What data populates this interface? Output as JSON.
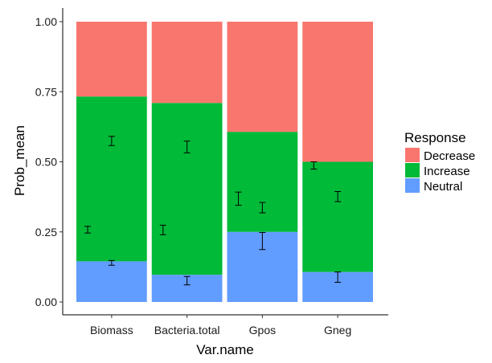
{
  "chart_data": {
    "type": "bar",
    "stacked": true,
    "xlabel": "Var.name",
    "ylabel": "Prob_mean",
    "ylim": [
      0,
      1
    ],
    "yticks": [
      "0.00",
      "0.25",
      "0.50",
      "0.75",
      "1.00"
    ],
    "ytick_values": [
      0,
      0.25,
      0.5,
      0.75,
      1.0
    ],
    "categories": [
      "Biomass",
      "Bacteria.total",
      "Gpos",
      "Gneg"
    ],
    "series": [
      {
        "name": "Neutral",
        "values": [
          0.145,
          0.097,
          0.25,
          0.107
        ],
        "color": "#619CFF"
      },
      {
        "name": "Increase",
        "values": [
          0.588,
          0.613,
          0.357,
          0.393
        ],
        "color": "#00BA38"
      },
      {
        "name": "Decrease",
        "values": [
          0.267,
          0.29,
          0.393,
          0.5
        ],
        "color": "#F8766D"
      }
    ],
    "error_bars": [
      {
        "category": "Biomass",
        "series": "Increase",
        "lower": 0.246,
        "upper": 0.27,
        "position": "left"
      },
      {
        "category": "Biomass",
        "series": "Increase",
        "lower": 0.558,
        "upper": 0.591,
        "position": "right"
      },
      {
        "category": "Biomass",
        "series": "Neutral",
        "lower": 0.131,
        "upper": 0.148,
        "position": "right"
      },
      {
        "category": "Bacteria.total",
        "series": "Increase",
        "lower": 0.24,
        "upper": 0.274,
        "position": "left"
      },
      {
        "category": "Bacteria.total",
        "series": "Increase",
        "lower": 0.532,
        "upper": 0.574,
        "position": "right"
      },
      {
        "category": "Bacteria.total",
        "series": "Neutral",
        "lower": 0.061,
        "upper": 0.091,
        "position": "right"
      },
      {
        "category": "Gpos",
        "series": "Increase",
        "lower": 0.345,
        "upper": 0.392,
        "position": "left"
      },
      {
        "category": "Gpos",
        "series": "Increase",
        "lower": 0.318,
        "upper": 0.355,
        "position": "right"
      },
      {
        "category": "Gpos",
        "series": "Neutral",
        "lower": 0.187,
        "upper": 0.248,
        "position": "right"
      },
      {
        "category": "Gneg",
        "series": "Increase",
        "lower": 0.474,
        "upper": 0.5,
        "position": "left"
      },
      {
        "category": "Gneg",
        "series": "Increase",
        "lower": 0.358,
        "upper": 0.394,
        "position": "right"
      },
      {
        "category": "Gneg",
        "series": "Neutral",
        "lower": 0.07,
        "upper": 0.107,
        "position": "right"
      }
    ],
    "legend": {
      "title": "Response",
      "position": "right",
      "entries": [
        "Decrease",
        "Increase",
        "Neutral"
      ]
    },
    "grid": false,
    "background": "#ffffff"
  }
}
